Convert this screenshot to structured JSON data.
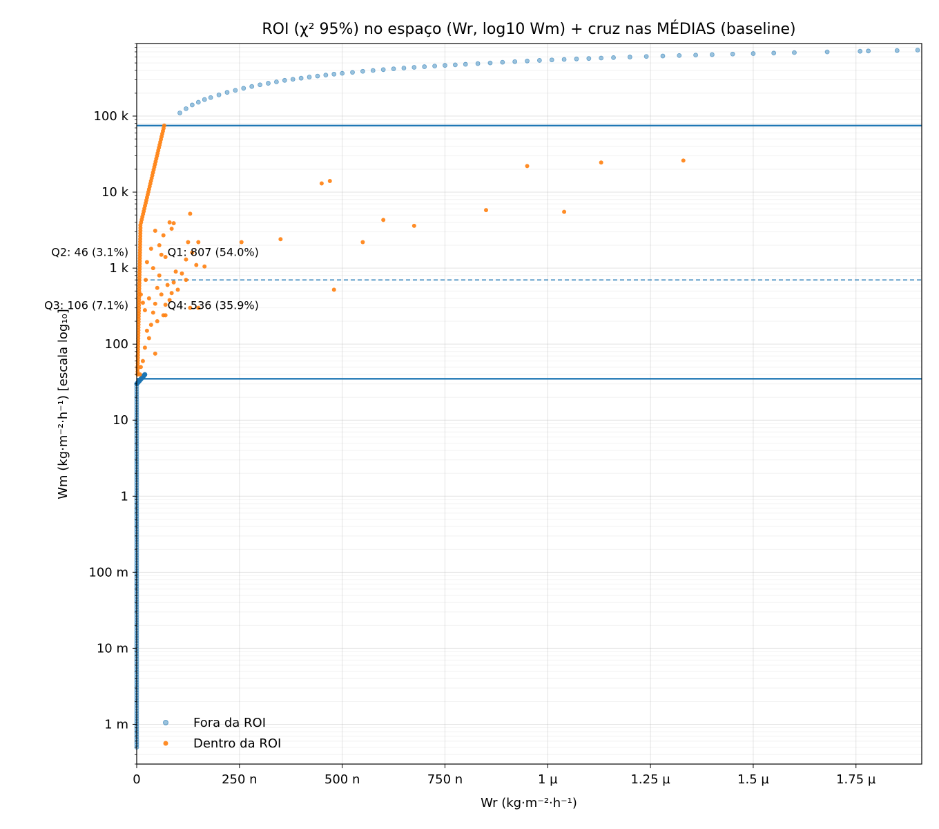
{
  "chart_data": {
    "type": "scatter",
    "title": "ROI (χ² 95%) no espaço (Wr, log10 Wm) + cruz nas MÉDIAS (baseline)",
    "xlabel": "Wr (kg·m⁻²·h⁻¹)",
    "ylabel": "Wm (kg·m⁻²·h⁻¹)  [escala log₁₀]",
    "x_scale": "linear",
    "y_scale": "log",
    "xlim": [
      0,
      1.91e-06
    ],
    "ylim": [
      0.0003,
      900000
    ],
    "x_ticks": [
      {
        "value": 0,
        "label": "0"
      },
      {
        "value": 2.5e-07,
        "label": "250 n"
      },
      {
        "value": 5e-07,
        "label": "500 n"
      },
      {
        "value": 7.5e-07,
        "label": "750 n"
      },
      {
        "value": 1e-06,
        "label": "1 µ"
      },
      {
        "value": 1.25e-06,
        "label": "1.25 µ"
      },
      {
        "value": 1.5e-06,
        "label": "1.5 µ"
      },
      {
        "value": 1.75e-06,
        "label": "1.75 µ"
      }
    ],
    "y_ticks": [
      {
        "value": 0.001,
        "label": "1 m"
      },
      {
        "value": 0.01,
        "label": "10 m"
      },
      {
        "value": 0.1,
        "label": "100 m"
      },
      {
        "value": 1,
        "label": "1"
      },
      {
        "value": 10,
        "label": "10"
      },
      {
        "value": 100,
        "label": "100"
      },
      {
        "value": 1000,
        "label": "1 k"
      },
      {
        "value": 10000,
        "label": "10 k"
      },
      {
        "value": 100000,
        "label": "100 k"
      }
    ],
    "grid": true,
    "hlines": [
      {
        "y": 75000,
        "style": "solid",
        "color": "#1f77b4"
      },
      {
        "y": 35,
        "style": "solid",
        "color": "#1f77b4"
      },
      {
        "y": 700,
        "style": "dashed",
        "color": "#1f77b4"
      }
    ],
    "annotations": [
      {
        "text": "Q2: 46 (3.1%)",
        "x": -2e-08,
        "y": 1450,
        "anchor": "end"
      },
      {
        "text": "Q1: 807 (54.0%)",
        "x": 7.5e-08,
        "y": 1450,
        "anchor": "start"
      },
      {
        "text": "Q3: 106 (7.1%)",
        "x": -2e-08,
        "y": 290,
        "anchor": "end"
      },
      {
        "text": "Q4: 536 (35.9%)",
        "x": 7.5e-08,
        "y": 290,
        "anchor": "start"
      }
    ],
    "legend": {
      "position": "lower-left"
    },
    "series": [
      {
        "name": "Fora da ROI",
        "color": "#1f77b4",
        "opacity": 0.45,
        "marker": "circle",
        "points": [
          [
            1.05e-07,
            110000
          ],
          [
            1.2e-07,
            125000
          ],
          [
            1.35e-07,
            140000
          ],
          [
            1.5e-07,
            152000
          ],
          [
            1.65e-07,
            165000
          ],
          [
            1.8e-07,
            175000
          ],
          [
            2e-07,
            190000
          ],
          [
            2.2e-07,
            205000
          ],
          [
            2.4e-07,
            218000
          ],
          [
            2.6e-07,
            232000
          ],
          [
            2.8e-07,
            245000
          ],
          [
            3e-07,
            258000
          ],
          [
            3.2e-07,
            270000
          ],
          [
            3.4e-07,
            282000
          ],
          [
            3.6e-07,
            295000
          ],
          [
            3.8e-07,
            305000
          ],
          [
            4e-07,
            315000
          ],
          [
            4.2e-07,
            326000
          ],
          [
            4.4e-07,
            336000
          ],
          [
            4.6e-07,
            346000
          ],
          [
            4.8e-07,
            356000
          ],
          [
            5e-07,
            365000
          ],
          [
            5.25e-07,
            376000
          ],
          [
            5.5e-07,
            388000
          ],
          [
            5.75e-07,
            398000
          ],
          [
            6e-07,
            408000
          ],
          [
            6.25e-07,
            418000
          ],
          [
            6.5e-07,
            428000
          ],
          [
            6.75e-07,
            437000
          ],
          [
            7e-07,
            446000
          ],
          [
            7.25e-07,
            455000
          ],
          [
            7.5e-07,
            464000
          ],
          [
            7.75e-07,
            472000
          ],
          [
            8e-07,
            480000
          ],
          [
            8.3e-07,
            490000
          ],
          [
            8.6e-07,
            500000
          ],
          [
            8.9e-07,
            510000
          ],
          [
            9.2e-07,
            520000
          ],
          [
            9.5e-07,
            530000
          ],
          [
            9.8e-07,
            540000
          ],
          [
            1.01e-06,
            548000
          ],
          [
            1.04e-06,
            556000
          ],
          [
            1.07e-06,
            564000
          ],
          [
            1.1e-06,
            572000
          ],
          [
            1.13e-06,
            580000
          ],
          [
            1.16e-06,
            588000
          ],
          [
            1.2e-06,
            598000
          ],
          [
            1.24e-06,
            608000
          ],
          [
            1.28e-06,
            617000
          ],
          [
            1.32e-06,
            626000
          ],
          [
            1.36e-06,
            634000
          ],
          [
            1.4e-06,
            643000
          ],
          [
            1.45e-06,
            654000
          ],
          [
            1.5e-06,
            664000
          ],
          [
            1.55e-06,
            674000
          ],
          [
            1.6e-06,
            684000
          ],
          [
            1.68e-06,
            698000
          ],
          [
            1.76e-06,
            712000
          ],
          [
            1.78e-06,
            718000
          ],
          [
            1.85e-06,
            727000
          ],
          [
            1.9e-06,
            738000
          ]
        ]
      },
      {
        "name": "Dentro da ROI",
        "color": "#ff7f0e",
        "opacity": 0.9,
        "marker": "circle",
        "points": [
          [
            4.5e-07,
            13000
          ],
          [
            4.7e-07,
            14000
          ],
          [
            9.5e-07,
            22000
          ],
          [
            1.13e-06,
            24500
          ],
          [
            1.33e-06,
            26000
          ],
          [
            8.5e-07,
            5800
          ],
          [
            1.04e-06,
            5500
          ],
          [
            6e-07,
            4300
          ],
          [
            6.75e-07,
            3600
          ],
          [
            1.3e-07,
            5200
          ],
          [
            3.5e-07,
            2400
          ],
          [
            5.5e-07,
            2200
          ],
          [
            2.55e-07,
            2200
          ],
          [
            4.8e-07,
            520
          ],
          [
            1.65e-07,
            1050
          ],
          [
            1.5e-07,
            2200
          ],
          [
            1.25e-07,
            2200
          ],
          [
            1.2e-07,
            1300
          ],
          [
            1.35e-07,
            1600
          ],
          [
            1.45e-07,
            1100
          ],
          [
            8.5e-08,
            3300
          ],
          [
            9e-08,
            3900
          ],
          [
            8e-08,
            4000
          ],
          [
            4.5e-08,
            3100
          ],
          [
            6.5e-08,
            2700
          ],
          [
            5.5e-08,
            2000
          ],
          [
            3.5e-08,
            1800
          ],
          [
            6e-08,
            1500
          ],
          [
            7e-08,
            1400
          ],
          [
            2.5e-08,
            1200
          ],
          [
            4e-08,
            1000
          ],
          [
            9.5e-08,
            900
          ],
          [
            1.1e-07,
            850
          ],
          [
            1.2e-07,
            700
          ],
          [
            7.5e-08,
            600
          ],
          [
            5e-08,
            550
          ],
          [
            6e-08,
            450
          ],
          [
            3e-08,
            400
          ],
          [
            8e-08,
            380
          ],
          [
            4.5e-08,
            340
          ],
          [
            1.3e-07,
            300
          ],
          [
            1.5e-07,
            300
          ],
          [
            6.5e-08,
            240
          ],
          [
            7e-08,
            240
          ],
          [
            4e-08,
            260
          ],
          [
            3.5e-08,
            180
          ],
          [
            2.5e-08,
            150
          ],
          [
            3e-08,
            120
          ],
          [
            4.5e-08,
            75
          ],
          [
            2e-08,
            90
          ],
          [
            1.5e-08,
            60
          ],
          [
            1e-08,
            50
          ],
          [
            8e-09,
            40
          ],
          [
            5.5e-08,
            800
          ],
          [
            9e-08,
            650
          ],
          [
            1e-07,
            520
          ],
          [
            8.5e-08,
            470
          ],
          [
            7e-08,
            330
          ],
          [
            5e-08,
            200
          ],
          [
            2e-08,
            280
          ],
          [
            1.5e-08,
            350
          ],
          [
            1e-08,
            450
          ],
          [
            2.2e-08,
            700
          ]
        ]
      }
    ]
  }
}
